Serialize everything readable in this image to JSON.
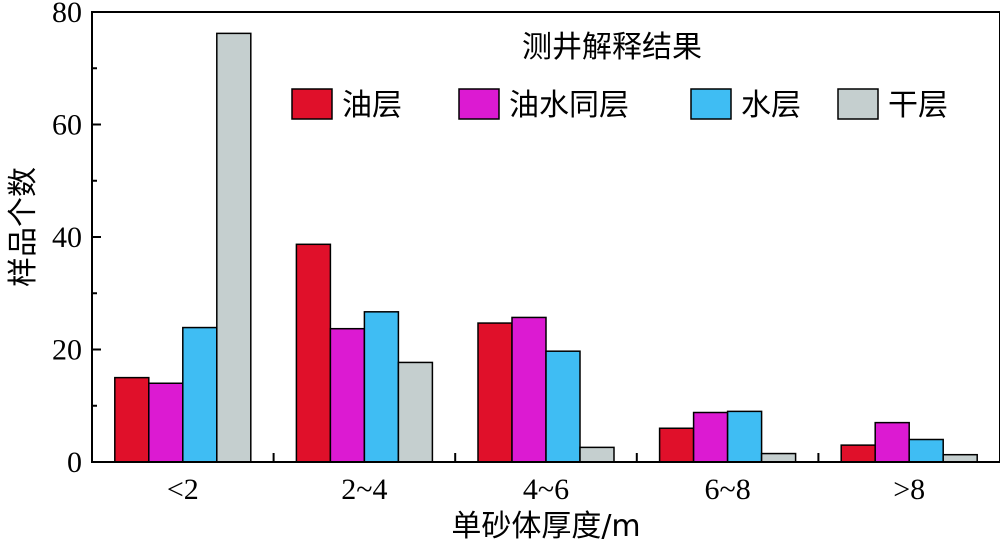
{
  "chart_data": {
    "type": "bar",
    "xlabel": "单砂体厚度/m",
    "ylabel": "样品个数",
    "ylim": [
      0,
      80
    ],
    "yticks": [
      0,
      20,
      40,
      60,
      80
    ],
    "categories": [
      "<2",
      "2~4",
      "4~6",
      "6~8",
      ">8"
    ],
    "legend": {
      "title": "测井解释结果",
      "position": "top-right"
    },
    "series": [
      {
        "name": "油层",
        "color": "#e0102a",
        "values": [
          15,
          38.7,
          24.7,
          6,
          3
        ]
      },
      {
        "name": "油水同层",
        "color": "#dc1ad2",
        "values": [
          14,
          23.7,
          25.7,
          8.8,
          7
        ]
      },
      {
        "name": "水层",
        "color": "#3fbdf3",
        "values": [
          23.9,
          26.7,
          19.7,
          9,
          4
        ]
      },
      {
        "name": "干层",
        "color": "#c5cfcf",
        "values": [
          76.2,
          17.7,
          2.6,
          1.5,
          1.3
        ]
      }
    ]
  }
}
